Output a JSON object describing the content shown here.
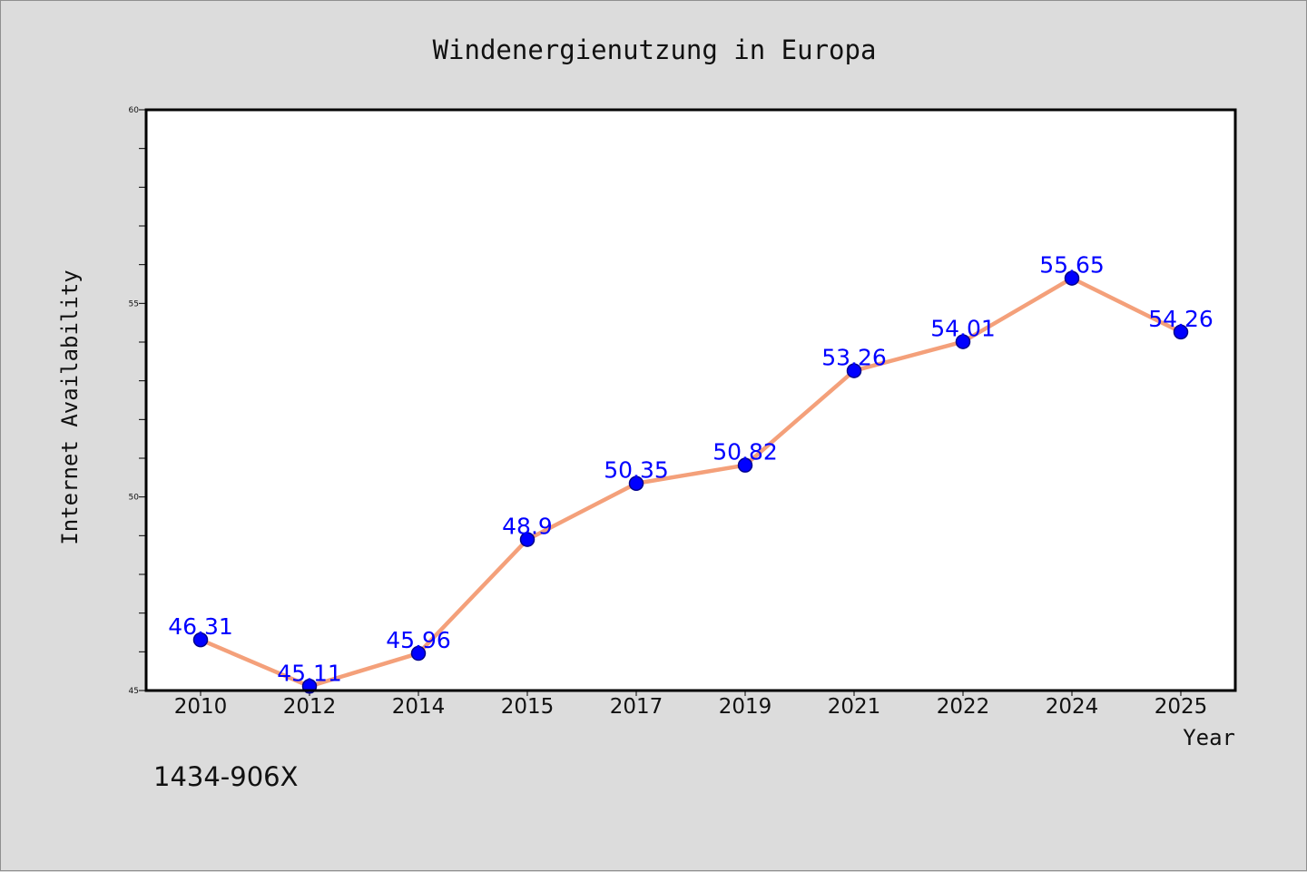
{
  "chart_data": {
    "type": "line",
    "title": "Windenergienutzung in Europa",
    "xlabel": "Year",
    "ylabel": "Internet Availability",
    "categories": [
      "2010",
      "2012",
      "2014",
      "2015",
      "2017",
      "2019",
      "2021",
      "2022",
      "2024",
      "2025"
    ],
    "values": [
      46.31,
      45.11,
      45.96,
      48.9,
      50.35,
      50.82,
      53.26,
      54.01,
      55.65,
      54.26
    ],
    "data_labels": [
      "46.31",
      "45.11",
      "45.96",
      "48.9",
      "50.35",
      "50.82",
      "53.26",
      "54.01",
      "55.65",
      "54.26"
    ],
    "ylim": [
      45,
      60
    ],
    "yticks": [
      45,
      50,
      55,
      60
    ],
    "grid": false,
    "colors": {
      "line": "#f4a07a",
      "marker": "#0000ff",
      "label": "#0000ff",
      "background": "#dcdcdc",
      "plot": "#ffffff"
    }
  },
  "footer": {
    "code": "1434-906X"
  }
}
